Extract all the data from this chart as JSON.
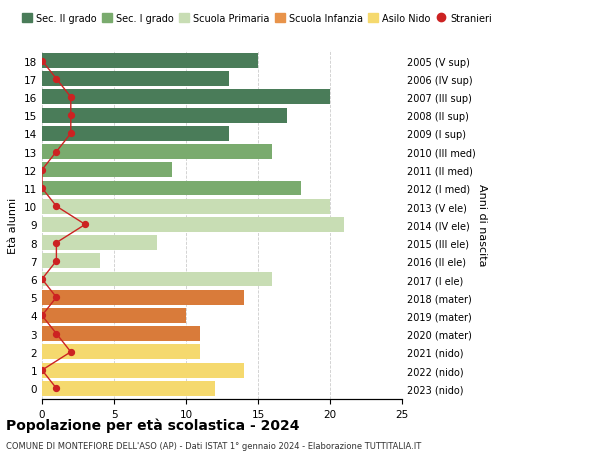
{
  "ages": [
    18,
    17,
    16,
    15,
    14,
    13,
    12,
    11,
    10,
    9,
    8,
    7,
    6,
    5,
    4,
    3,
    2,
    1,
    0
  ],
  "bar_values": [
    15,
    13,
    20,
    17,
    13,
    16,
    9,
    18,
    20,
    21,
    8,
    4,
    16,
    14,
    10,
    11,
    11,
    14,
    12
  ],
  "bar_colors": [
    "#4a7c59",
    "#4a7c59",
    "#4a7c59",
    "#4a7c59",
    "#4a7c59",
    "#7aab6e",
    "#7aab6e",
    "#7aab6e",
    "#c8ddb4",
    "#c8ddb4",
    "#c8ddb4",
    "#c8ddb4",
    "#c8ddb4",
    "#d97b3a",
    "#d97b3a",
    "#d97b3a",
    "#f5d96e",
    "#f5d96e",
    "#f5d96e"
  ],
  "stranieri_values": [
    0,
    1,
    2,
    2,
    2,
    1,
    0,
    0,
    1,
    3,
    1,
    1,
    0,
    1,
    0,
    1,
    2,
    0,
    1
  ],
  "right_labels": [
    "2005 (V sup)",
    "2006 (IV sup)",
    "2007 (III sup)",
    "2008 (II sup)",
    "2009 (I sup)",
    "2010 (III med)",
    "2011 (II med)",
    "2012 (I med)",
    "2013 (V ele)",
    "2014 (IV ele)",
    "2015 (III ele)",
    "2016 (II ele)",
    "2017 (I ele)",
    "2018 (mater)",
    "2019 (mater)",
    "2020 (mater)",
    "2021 (nido)",
    "2022 (nido)",
    "2023 (nido)"
  ],
  "legend_labels": [
    "Sec. II grado",
    "Sec. I grado",
    "Scuola Primaria",
    "Scuola Infanzia",
    "Asilo Nido",
    "Stranieri"
  ],
  "legend_colors": [
    "#4a7c59",
    "#7aab6e",
    "#c8ddb4",
    "#e8934a",
    "#f5d96e",
    "#cc2222"
  ],
  "ylabel": "Età alunni",
  "ylabel_right": "Anni di nascita",
  "title": "Popolazione per età scolastica - 2024",
  "subtitle": "COMUNE DI MONTEFIORE DELL'ASO (AP) - Dati ISTAT 1° gennaio 2024 - Elaborazione TUTTITALIA.IT",
  "xlim": [
    0,
    25
  ],
  "xticks": [
    0,
    5,
    10,
    15,
    20,
    25
  ],
  "background_color": "#ffffff",
  "grid_color": "#cccccc"
}
